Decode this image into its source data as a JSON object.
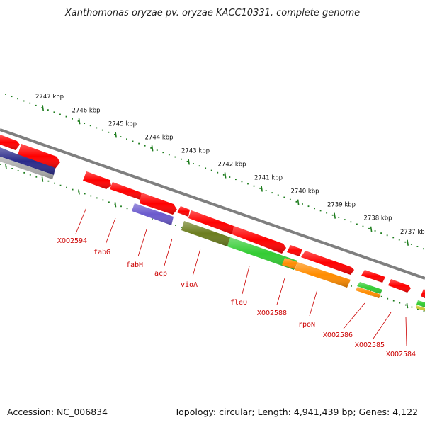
{
  "title": "Xanthomonas oryzae pv. oryzae KACC10331, complete genome",
  "footer": {
    "accession": "Accession: NC_006834",
    "topology": "Topology: circular; Length: 4,941,439 bp; Genes: 4,122"
  },
  "ruler": {
    "labels": [
      "2747 kbp",
      "2746 kbp",
      "2745 kbp",
      "2744 kbp",
      "2743 kbp",
      "2742 kbp",
      "2741 kbp",
      "2740 kbp",
      "2739 kbp",
      "2738 kbp",
      "2737 kbp"
    ],
    "color": "#1e7d1e"
  },
  "gene_labels": [
    "XOO2594",
    "fabG",
    "fabH",
    "acp",
    "vioA",
    "fleQ",
    "XOO2588",
    "rpoN",
    "XOO2586",
    "XOO2585",
    "XOO2584"
  ],
  "colors": {
    "backbone": "#7f7f7f",
    "gene_forward": "#ff0000",
    "gene_reverse": "#ff0000",
    "label": "#cc0000",
    "cog_blue": "#6a5acd",
    "cog_navy": "#2a2a8a",
    "cog_green": "#33cc33",
    "cog_olive": "#6b7d1e",
    "cog_orange": "#ff8c00",
    "cog_gray": "#aaaaaa",
    "cog_yellow": "#cccc33"
  }
}
